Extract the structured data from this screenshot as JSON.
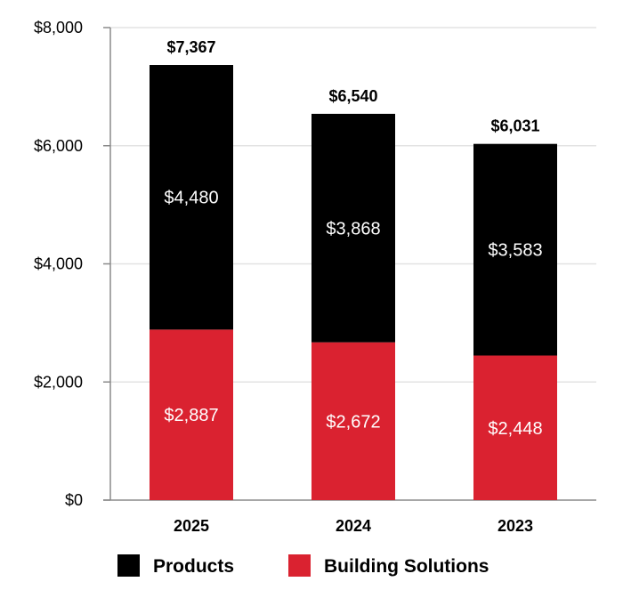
{
  "chart_data": {
    "type": "bar",
    "stacked": true,
    "title": "",
    "xlabel": "",
    "ylabel": "",
    "categories": [
      "2025",
      "2024",
      "2023"
    ],
    "series": [
      {
        "name": "Building Solutions",
        "color": "#da2230",
        "values": [
          2887,
          2672,
          2448
        ],
        "labels": [
          "$2,887",
          "$2,672",
          "$2,448"
        ]
      },
      {
        "name": "Products",
        "color": "#000000",
        "values": [
          4480,
          3868,
          3583
        ],
        "labels": [
          "$4,480",
          "$3,868",
          "$3,583"
        ]
      }
    ],
    "totals": [
      7367,
      6540,
      6031
    ],
    "total_labels": [
      "$7,367",
      "$6,540",
      "$6,031"
    ],
    "ylim": [
      0,
      8000
    ],
    "yticks": [
      0,
      2000,
      4000,
      6000,
      8000
    ],
    "ytick_labels": [
      "$0",
      "$2,000",
      "$4,000",
      "$6,000",
      "$8,000"
    ],
    "grid": true,
    "legend": {
      "position": "bottom",
      "items": [
        {
          "label": "Products",
          "color": "#000000"
        },
        {
          "label": "Building Solutions",
          "color": "#da2230"
        }
      ]
    }
  }
}
